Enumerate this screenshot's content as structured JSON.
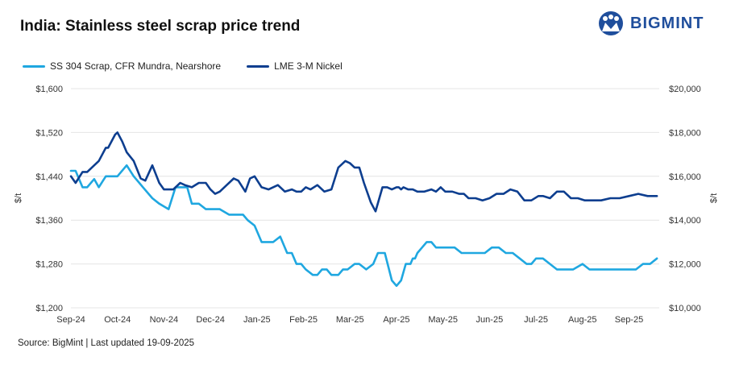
{
  "title": "India: Stainless steel scrap price trend",
  "logo": {
    "text": "BIGMINT",
    "color": "#1f4e9c"
  },
  "source": "Source: BigMint | Last updated 19-09-2025",
  "colors": {
    "scrap": "#1fa7e0",
    "nickel": "#0d3e8f",
    "grid": "#e4e4e4"
  },
  "chart_data": {
    "type": "line",
    "title": "India: Stainless steel scrap price trend",
    "x_tick_labels": [
      "Sep-24",
      "Oct-24",
      "Nov-24",
      "Dec-24",
      "Jan-25",
      "Feb-25",
      "Mar-25",
      "Apr-25",
      "May-25",
      "Jun-25",
      "Jul-25",
      "Aug-25",
      "Sep-25"
    ],
    "xlim": [
      0,
      12.65
    ],
    "ylabel_left": "$/t",
    "ylabel_right": "$/t",
    "ylim_left": [
      1200,
      1600
    ],
    "ylim_right": [
      10000,
      20000
    ],
    "left_ticks": [
      "$1,200",
      "$1,280",
      "$1,360",
      "$1,440",
      "$1,520",
      "$1,600"
    ],
    "right_ticks": [
      "$10,000",
      "$12,000",
      "$14,000",
      "$16,000",
      "$18,000",
      "$20,000"
    ],
    "grid": true,
    "legend_position": "top-left",
    "series": [
      {
        "name": "SS 304 Scrap, CFR Mundra, Nearshore",
        "axis": "left",
        "x": [
          0,
          0.1,
          0.25,
          0.35,
          0.5,
          0.6,
          0.75,
          0.85,
          1.0,
          1.2,
          1.35,
          1.45,
          1.55,
          1.75,
          1.9,
          2.1,
          2.25,
          2.35,
          2.5,
          2.6,
          2.75,
          2.9,
          3.0,
          3.2,
          3.4,
          3.55,
          3.7,
          3.8,
          3.95,
          4.1,
          4.2,
          4.35,
          4.5,
          4.65,
          4.75,
          4.85,
          4.95,
          5.05,
          5.2,
          5.3,
          5.4,
          5.5,
          5.6,
          5.75,
          5.85,
          5.95,
          6.1,
          6.2,
          6.35,
          6.5,
          6.6,
          6.75,
          6.9,
          7.0,
          7.1,
          7.2,
          7.3,
          7.35,
          7.4,
          7.45,
          7.55,
          7.65,
          7.75,
          7.85,
          7.95,
          8.05,
          8.25,
          8.4,
          8.5,
          8.7,
          8.9,
          9.05,
          9.2,
          9.35,
          9.5,
          9.65,
          9.8,
          9.9,
          10.0,
          10.15,
          10.3,
          10.45,
          10.6,
          10.8,
          11.0,
          11.15,
          11.3,
          11.5,
          11.7,
          11.8,
          11.9,
          12.0,
          12.15,
          12.3,
          12.45,
          12.6
        ],
        "y": [
          1450,
          1450,
          1420,
          1420,
          1435,
          1420,
          1440,
          1440,
          1440,
          1460,
          1440,
          1430,
          1420,
          1400,
          1390,
          1380,
          1420,
          1420,
          1420,
          1390,
          1390,
          1380,
          1380,
          1380,
          1370,
          1370,
          1370,
          1360,
          1350,
          1320,
          1320,
          1320,
          1330,
          1300,
          1300,
          1280,
          1280,
          1270,
          1260,
          1260,
          1270,
          1270,
          1260,
          1260,
          1270,
          1270,
          1280,
          1280,
          1270,
          1280,
          1300,
          1300,
          1250,
          1240,
          1250,
          1280,
          1280,
          1290,
          1290,
          1300,
          1310,
          1320,
          1320,
          1310,
          1310,
          1310,
          1310,
          1300,
          1300,
          1300,
          1300,
          1310,
          1310,
          1300,
          1300,
          1290,
          1280,
          1280,
          1290,
          1290,
          1280,
          1270,
          1270,
          1270,
          1280,
          1270,
          1270,
          1270,
          1270,
          1270,
          1270,
          1270,
          1270,
          1280,
          1280,
          1290
        ],
        "values": [
          1450,
          1450,
          1420,
          1420,
          1435,
          1420,
          1440,
          1440,
          1440,
          1460,
          1440,
          1430,
          1420,
          1400,
          1390,
          1380,
          1420,
          1420,
          1420,
          1390,
          1390,
          1380,
          1380,
          1380,
          1370,
          1370,
          1370,
          1360,
          1350,
          1320,
          1320,
          1320,
          1330,
          1300,
          1300,
          1280,
          1280,
          1270,
          1260,
          1260,
          1270,
          1270,
          1260,
          1260,
          1270,
          1270,
          1280,
          1280,
          1270,
          1280,
          1300,
          1300,
          1250,
          1240,
          1250,
          1280,
          1280,
          1290,
          1290,
          1300,
          1310,
          1320,
          1320,
          1310,
          1310,
          1310,
          1310,
          1300,
          1300,
          1300,
          1300,
          1310,
          1310,
          1300,
          1300,
          1290,
          1280,
          1280,
          1290,
          1290,
          1280,
          1270,
          1270,
          1270,
          1280,
          1270,
          1270,
          1270,
          1270,
          1270,
          1270,
          1270,
          1270,
          1280,
          1280,
          1290
        ]
      },
      {
        "name": "LME 3-M Nickel",
        "axis": "right",
        "x": [
          0,
          0.1,
          0.25,
          0.35,
          0.5,
          0.6,
          0.75,
          0.8,
          0.95,
          1.0,
          1.1,
          1.2,
          1.35,
          1.5,
          1.6,
          1.75,
          1.9,
          2.0,
          2.1,
          2.2,
          2.35,
          2.45,
          2.6,
          2.75,
          2.9,
          3.0,
          3.1,
          3.2,
          3.35,
          3.5,
          3.6,
          3.75,
          3.85,
          3.95,
          4.1,
          4.25,
          4.45,
          4.6,
          4.75,
          4.85,
          4.95,
          5.05,
          5.15,
          5.3,
          5.45,
          5.6,
          5.75,
          5.9,
          6.0,
          6.1,
          6.2,
          6.3,
          6.45,
          6.55,
          6.7,
          6.8,
          6.9,
          7.0,
          7.05,
          7.1,
          7.15,
          7.25,
          7.35,
          7.45,
          7.6,
          7.75,
          7.85,
          7.95,
          8.05,
          8.2,
          8.35,
          8.45,
          8.55,
          8.7,
          8.85,
          9.0,
          9.15,
          9.3,
          9.45,
          9.6,
          9.75,
          9.9,
          10.05,
          10.15,
          10.3,
          10.45,
          10.6,
          10.75,
          10.9,
          11.05,
          11.2,
          11.4,
          11.6,
          11.8,
          12.0,
          12.2,
          12.4,
          12.6
        ],
        "y": [
          16000,
          15700,
          16200,
          16200,
          16500,
          16700,
          17300,
          17300,
          17900,
          18000,
          17600,
          17100,
          16700,
          15900,
          15800,
          16500,
          15700,
          15400,
          15400,
          15400,
          15700,
          15600,
          15500,
          15700,
          15700,
          15400,
          15200,
          15300,
          15600,
          15900,
          15800,
          15300,
          15900,
          16000,
          15500,
          15400,
          15600,
          15300,
          15400,
          15300,
          15300,
          15500,
          15400,
          15600,
          15300,
          15400,
          16400,
          16700,
          16600,
          16400,
          16400,
          15700,
          14800,
          14400,
          15500,
          15500,
          15400,
          15500,
          15500,
          15400,
          15500,
          15400,
          15400,
          15300,
          15300,
          15400,
          15300,
          15500,
          15300,
          15300,
          15200,
          15200,
          15000,
          15000,
          14900,
          15000,
          15200,
          15200,
          15400,
          15300,
          14900,
          14900,
          15100,
          15100,
          15000,
          15300,
          15300,
          15000,
          15000,
          14900,
          14900,
          14900,
          15000,
          15000,
          15100,
          15200,
          15100,
          15100
        ],
        "values": [
          16000,
          15700,
          16200,
          16200,
          16500,
          16700,
          17300,
          17300,
          17900,
          18000,
          17600,
          17100,
          16700,
          15900,
          15800,
          16500,
          15700,
          15400,
          15400,
          15400,
          15700,
          15600,
          15500,
          15700,
          15700,
          15400,
          15200,
          15300,
          15600,
          15900,
          15800,
          15300,
          15900,
          16000,
          15500,
          15400,
          15600,
          15300,
          15400,
          15300,
          15300,
          15500,
          15400,
          15600,
          15300,
          15400,
          16400,
          16700,
          16600,
          16400,
          16400,
          15700,
          14800,
          14400,
          15500,
          15500,
          15400,
          15500,
          15500,
          15400,
          15500,
          15400,
          15400,
          15300,
          15300,
          15400,
          15300,
          15500,
          15300,
          15300,
          15200,
          15200,
          15000,
          15000,
          14900,
          15000,
          15200,
          15200,
          15400,
          15300,
          14900,
          14900,
          15100,
          15100,
          15000,
          15300,
          15300,
          15000,
          15000,
          14900,
          14900,
          14900,
          15000,
          15000,
          15100,
          15200,
          15100,
          15100
        ]
      }
    ]
  }
}
